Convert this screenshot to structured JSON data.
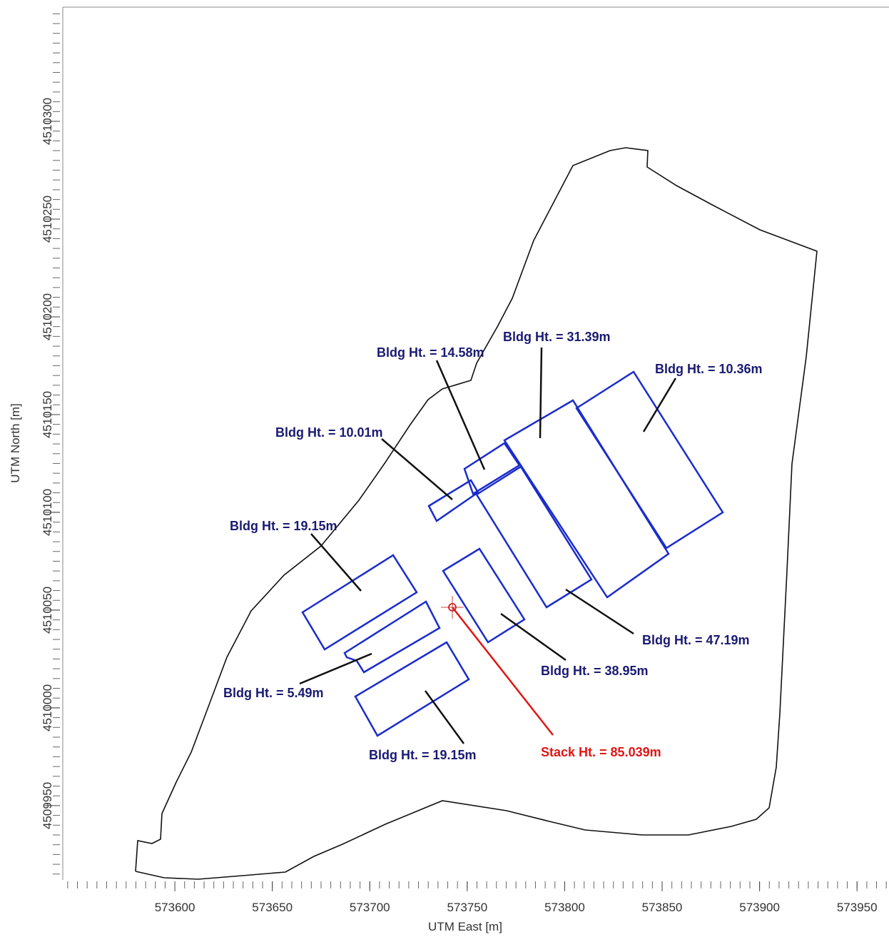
{
  "chart_data": {
    "type": "map",
    "x_label": "UTM East [m]",
    "y_label": "UTM North [m]",
    "xlim": [
      573542.5,
      573966.4
    ],
    "ylim": [
      4509912,
      4510358.4
    ],
    "xticks": [
      573600,
      573650,
      573700,
      573750,
      573800,
      573850,
      573900,
      573950
    ],
    "yticks": [
      4509950,
      4510000,
      4510050,
      4510100,
      4510150,
      4510200,
      4510250,
      4510300
    ],
    "labels": [
      "Bldg Ht. = 14.58m",
      "Bldg Ht. = 31.39m",
      "Bldg Ht. = 10.36m",
      "Bldg Ht. = 10.01m",
      "Bldg Ht. = 19.15m",
      "Bldg Ht. = 47.19m",
      "Bldg Ht. = 38.95m",
      "Bldg Ht. = 5.49m",
      "Bldg Ht. = 19.15m",
      "Stack Ht. = 85.039m"
    ]
  }
}
